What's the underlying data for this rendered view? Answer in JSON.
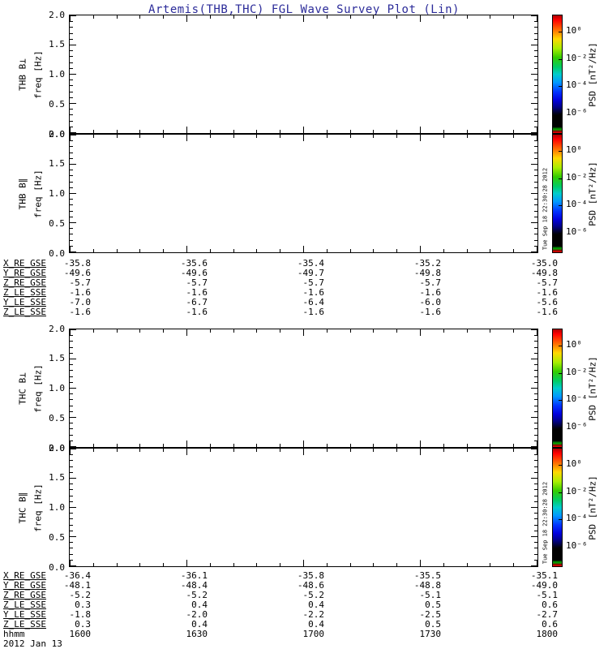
{
  "title": "Artemis(THB,THC) FGL Wave Survey Plot (Lin)",
  "colors": {
    "title": "#2b2b99",
    "axis": "#000000",
    "background": "#ffffff"
  },
  "timestamp_vertical": "Tue Sep 18 22:30:28 2012",
  "yticks": [
    "2.0",
    "1.5",
    "1.0",
    "0.5",
    "0.0"
  ],
  "colorbar": {
    "label": "PSD [nT²/Hz]",
    "ticks": [
      "10⁰",
      "10⁻²",
      "10⁻⁴",
      "10⁻⁶"
    ]
  },
  "panels": [
    {
      "instrument": "THB",
      "component": "B⊥",
      "label": "THB B⊥",
      "freq_label": "freq [Hz]"
    },
    {
      "instrument": "THB",
      "component": "B∥",
      "label": "THB B∥",
      "freq_label": "freq [Hz]"
    },
    {
      "instrument": "THC",
      "component": "B⊥",
      "label": "THC B⊥",
      "freq_label": "freq [Hz]"
    },
    {
      "instrument": "THC",
      "component": "B∥",
      "label": "THC B∥",
      "freq_label": "freq [Hz]"
    }
  ],
  "ephemeris_thb": {
    "rows": [
      {
        "label": "X_RE_GSE",
        "values": [
          "-35.8",
          "-35.6",
          "-35.4",
          "-35.2",
          "-35.0"
        ]
      },
      {
        "label": "Y_RE_GSE",
        "values": [
          "-49.6",
          "-49.6",
          "-49.7",
          "-49.8",
          "-49.8"
        ]
      },
      {
        "label": "Z_RE_GSE",
        "values": [
          "-5.7",
          "-5.7",
          "-5.7",
          "-5.7",
          "-5.7"
        ]
      },
      {
        "label": "Z_LE_SSE",
        "values": [
          "-1.6",
          "-1.6",
          "-1.6",
          "-1.6",
          "-1.6"
        ]
      },
      {
        "label": "Y_LE_SSE",
        "values": [
          "-7.0",
          "-6.7",
          "-6.4",
          "-6.0",
          "-5.6"
        ]
      },
      {
        "label": "Z_LE_SSE",
        "values": [
          "-1.6",
          "-1.6",
          "-1.6",
          "-1.6",
          "-1.6"
        ]
      }
    ]
  },
  "ephemeris_thc": {
    "rows": [
      {
        "label": "X_RE_GSE",
        "values": [
          "-36.4",
          "-36.1",
          "-35.8",
          "-35.5",
          "-35.1"
        ]
      },
      {
        "label": "Y_RE_GSE",
        "values": [
          "-48.1",
          "-48.4",
          "-48.6",
          "-48.8",
          "-49.0"
        ]
      },
      {
        "label": "Z_RE_GSE",
        "values": [
          "-5.2",
          "-5.2",
          "-5.2",
          "-5.1",
          "-5.1"
        ]
      },
      {
        "label": "Z_LE_SSE",
        "values": [
          "0.3",
          "0.4",
          "0.4",
          "0.5",
          "0.6"
        ]
      },
      {
        "label": "Y_LE_SSE",
        "values": [
          "-1.8",
          "-2.0",
          "-2.2",
          "-2.5",
          "-2.7"
        ]
      },
      {
        "label": "Z_LE_SSE",
        "values": [
          "0.3",
          "0.4",
          "0.4",
          "0.5",
          "0.6"
        ]
      }
    ]
  },
  "time_axis": {
    "label": "hhmm",
    "values": [
      "1600",
      "1630",
      "1700",
      "1730",
      "1800"
    ],
    "date": "2012 Jan 13"
  },
  "chart_data": [
    {
      "type": "heatmap",
      "title": "THB B⊥ wave power spectrogram",
      "xlabel": "time hhmm (2012 Jan 13)",
      "ylabel": "freq [Hz]",
      "ylim": [
        0,
        2
      ],
      "yticks": [
        0.0,
        0.5,
        1.0,
        1.5,
        2.0
      ],
      "xticks": [
        "1600",
        "1630",
        "1700",
        "1730",
        "1800"
      ],
      "colorbar_label": "PSD [nT²/Hz]",
      "colorbar_scale": "log",
      "colorbar_tick_values": [
        1,
        0.01,
        0.0001,
        1e-06
      ],
      "values": [],
      "note": "panel is blank - no spectral data rendered"
    },
    {
      "type": "heatmap",
      "title": "THB B∥ wave power spectrogram",
      "xlabel": "time hhmm (2012 Jan 13)",
      "ylabel": "freq [Hz]",
      "ylim": [
        0,
        2
      ],
      "yticks": [
        0.0,
        0.5,
        1.0,
        1.5,
        2.0
      ],
      "xticks": [
        "1600",
        "1630",
        "1700",
        "1730",
        "1800"
      ],
      "colorbar_label": "PSD [nT²/Hz]",
      "colorbar_scale": "log",
      "colorbar_tick_values": [
        1,
        0.01,
        0.0001,
        1e-06
      ],
      "values": [],
      "note": "panel is blank - no spectral data rendered"
    },
    {
      "type": "heatmap",
      "title": "THC B⊥ wave power spectrogram",
      "xlabel": "time hhmm (2012 Jan 13)",
      "ylabel": "freq [Hz]",
      "ylim": [
        0,
        2
      ],
      "yticks": [
        0.0,
        0.5,
        1.0,
        1.5,
        2.0
      ],
      "xticks": [
        "1600",
        "1630",
        "1700",
        "1730",
        "1800"
      ],
      "colorbar_label": "PSD [nT²/Hz]",
      "colorbar_scale": "log",
      "colorbar_tick_values": [
        1,
        0.01,
        0.0001,
        1e-06
      ],
      "values": [],
      "note": "panel is blank - no spectral data rendered"
    },
    {
      "type": "heatmap",
      "title": "THC B∥ wave power spectrogram",
      "xlabel": "time hhmm (2012 Jan 13)",
      "ylabel": "freq [Hz]",
      "ylim": [
        0,
        2
      ],
      "yticks": [
        0.0,
        0.5,
        1.0,
        1.5,
        2.0
      ],
      "xticks": [
        "1600",
        "1630",
        "1700",
        "1730",
        "1800"
      ],
      "colorbar_label": "PSD [nT²/Hz]",
      "colorbar_scale": "log",
      "colorbar_tick_values": [
        1,
        0.01,
        0.0001,
        1e-06
      ],
      "values": [],
      "note": "panel is blank - no spectral data rendered"
    },
    {
      "type": "table",
      "title": "THB ephemeris",
      "columns": [
        "1600",
        "1630",
        "1700",
        "1730",
        "1800"
      ],
      "row_labels": [
        "X_RE_GSE",
        "Y_RE_GSE",
        "Z_RE_GSE",
        "Z_LE_SSE",
        "Y_LE_SSE",
        "Z_LE_SSE"
      ],
      "values": [
        [
          -35.8,
          -35.6,
          -35.4,
          -35.2,
          -35.0
        ],
        [
          -49.6,
          -49.6,
          -49.7,
          -49.8,
          -49.8
        ],
        [
          -5.7,
          -5.7,
          -5.7,
          -5.7,
          -5.7
        ],
        [
          -1.6,
          -1.6,
          -1.6,
          -1.6,
          -1.6
        ],
        [
          -7.0,
          -6.7,
          -6.4,
          -6.0,
          -5.6
        ],
        [
          -1.6,
          -1.6,
          -1.6,
          -1.6,
          -1.6
        ]
      ]
    },
    {
      "type": "table",
      "title": "THC ephemeris",
      "columns": [
        "1600",
        "1630",
        "1700",
        "1730",
        "1800"
      ],
      "row_labels": [
        "X_RE_GSE",
        "Y_RE_GSE",
        "Z_RE_GSE",
        "Z_LE_SSE",
        "Y_LE_SSE",
        "Z_LE_SSE"
      ],
      "values": [
        [
          -36.4,
          -36.1,
          -35.8,
          -35.5,
          -35.1
        ],
        [
          -48.1,
          -48.4,
          -48.6,
          -48.8,
          -49.0
        ],
        [
          -5.2,
          -5.2,
          -5.2,
          -5.1,
          -5.1
        ],
        [
          0.3,
          0.4,
          0.4,
          0.5,
          0.6
        ],
        [
          -1.8,
          -2.0,
          -2.2,
          -2.5,
          -2.7
        ],
        [
          0.3,
          0.4,
          0.4,
          0.5,
          0.6
        ]
      ]
    }
  ]
}
